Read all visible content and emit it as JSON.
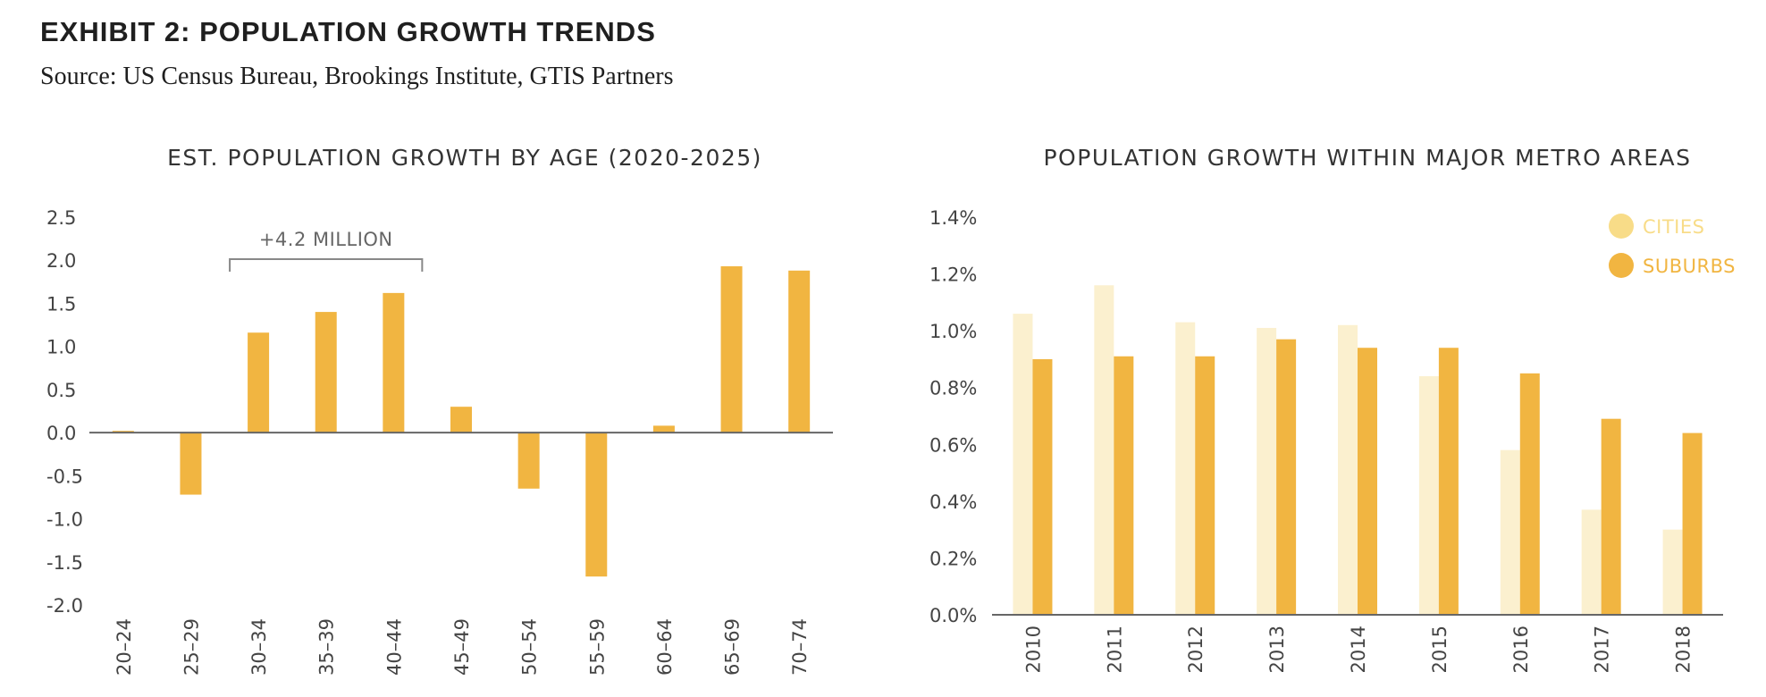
{
  "header": {
    "title": "EXHIBIT 2: POPULATION GROWTH TRENDS",
    "source": "Source: US Census Bureau, Brookings Institute, GTIS Partners"
  },
  "colors": {
    "bar": "#f1b541",
    "cities": "#fbf0cf",
    "suburbs": "#f1b541",
    "cities_legend": "#f8dc88",
    "axis": "#666666"
  },
  "chart_data": [
    {
      "type": "bar",
      "title": "EST. POPULATION GROWTH BY AGE (2020-2025)",
      "categories": [
        "20–24",
        "25–29",
        "30–34",
        "35–39",
        "40–44",
        "45–49",
        "50–54",
        "55–59",
        "60–64",
        "65–69",
        "70–74"
      ],
      "values": [
        0.02,
        -0.72,
        1.16,
        1.4,
        1.62,
        0.3,
        -0.65,
        -1.67,
        0.08,
        1.93,
        1.88
      ],
      "yticks": [
        "2.5",
        "2.0",
        "1.5",
        "1.0",
        "0.5",
        "0.0",
        "-0.5",
        "-1.0",
        "-1.5",
        "-2.0"
      ],
      "ylim": [
        -2.0,
        2.5
      ],
      "grid": false,
      "annotation": {
        "text": "+4.2 MILLION",
        "from_category": "30–34",
        "to_category": "40–44"
      }
    },
    {
      "type": "bar",
      "title": "POPULATION GROWTH WITHIN MAJOR METRO AREAS",
      "categories": [
        "2010",
        "2011",
        "2012",
        "2013",
        "2014",
        "2015",
        "2016",
        "2017",
        "2018"
      ],
      "series": [
        {
          "name": "CITIES",
          "values": [
            1.06,
            1.16,
            1.03,
            1.01,
            1.02,
            0.84,
            0.58,
            0.37,
            0.3
          ]
        },
        {
          "name": "SUBURBS",
          "values": [
            0.9,
            0.91,
            0.91,
            0.97,
            0.94,
            0.94,
            0.85,
            0.69,
            0.64
          ]
        }
      ],
      "yticks": [
        "1.4%",
        "1.2%",
        "1.0%",
        "0.8%",
        "0.6%",
        "0.4%",
        "0.2%",
        "0.0%"
      ],
      "ylim": [
        0,
        1.4
      ],
      "grid": false,
      "legend": {
        "position": "top-right"
      }
    }
  ]
}
